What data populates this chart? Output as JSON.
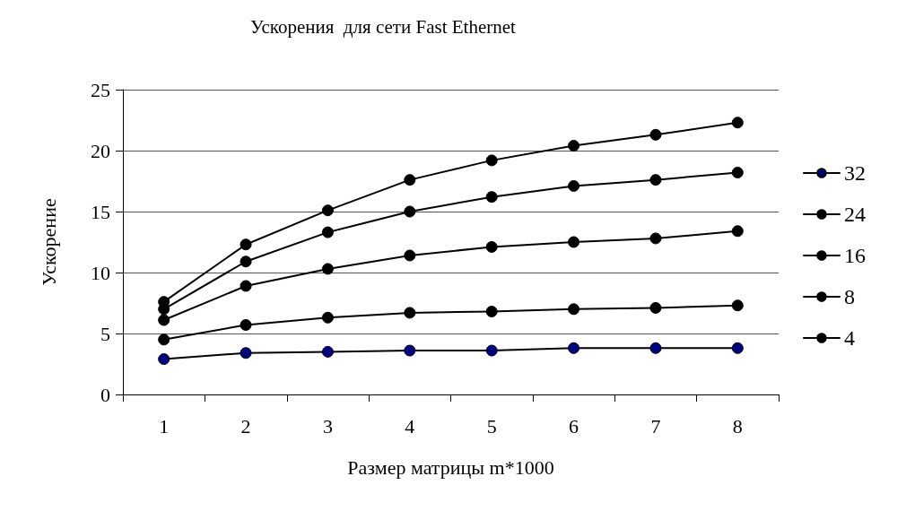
{
  "chart_data": {
    "type": "line",
    "title": "Ускорения  для сети Fast Ethernet",
    "xlabel": "Размер матрицы m*1000",
    "ylabel": "Ускорение",
    "categories": [
      "1",
      "2",
      "3",
      "4",
      "5",
      "6",
      "7",
      "8"
    ],
    "series": [
      {
        "name": "32",
        "color": "#000080",
        "values": [
          2.9,
          3.4,
          3.5,
          3.6,
          3.6,
          3.8,
          3.8,
          3.8
        ]
      },
      {
        "name": "24",
        "color": "#000000",
        "values": [
          4.5,
          5.7,
          6.3,
          6.7,
          6.8,
          7.0,
          7.1,
          7.3
        ]
      },
      {
        "name": "16",
        "color": "#000000",
        "values": [
          6.1,
          8.9,
          10.3,
          11.4,
          12.1,
          12.5,
          12.8,
          13.4
        ]
      },
      {
        "name": "8",
        "color": "#000000",
        "values": [
          7.0,
          10.9,
          13.3,
          15.0,
          16.2,
          17.1,
          17.6,
          18.2
        ]
      },
      {
        "name": "4",
        "color": "#000000",
        "values": [
          7.6,
          12.3,
          15.1,
          17.6,
          19.2,
          20.4,
          21.3,
          22.3
        ]
      }
    ],
    "ylim": [
      0,
      25
    ],
    "yticks": [
      0,
      5,
      10,
      15,
      20,
      25
    ],
    "grid": "y",
    "legend": "right",
    "marker": "circle",
    "line_style": "solid"
  }
}
